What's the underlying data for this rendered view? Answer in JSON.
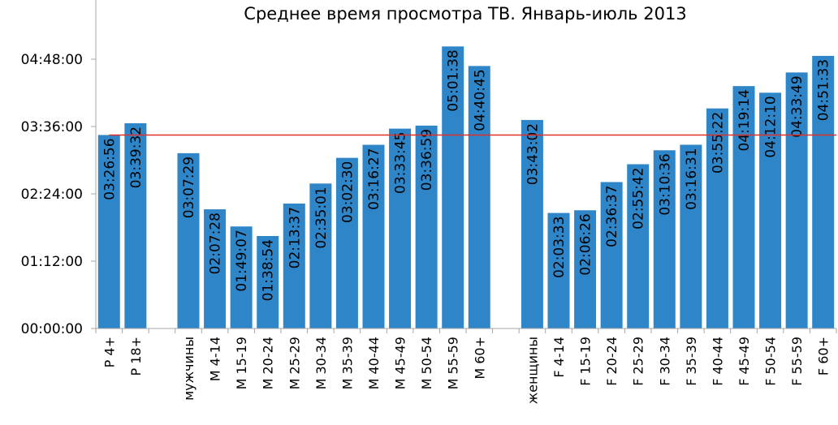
{
  "chart_data": {
    "type": "bar",
    "title": "Среднее время просмотра ТВ. Январь-июль 2013",
    "xlabel": "",
    "ylabel": "",
    "unit": "hh:mm:ss",
    "ylim_seconds": [
      0,
      20736
    ],
    "yticks": [
      {
        "label": "00:00:00",
        "seconds": 0
      },
      {
        "label": "01:12:00",
        "seconds": 4320
      },
      {
        "label": "02:24:00",
        "seconds": 8640
      },
      {
        "label": "03:36:00",
        "seconds": 12960
      },
      {
        "label": "04:48:00",
        "seconds": 17280
      }
    ],
    "reference_line": {
      "value_seconds": 12416,
      "value": "03:26:56",
      "color": "#E0302A"
    },
    "colors": {
      "bar": "#2E86C8",
      "axis": "#A6A6A6"
    },
    "grid": false,
    "legend": "none",
    "bars": [
      {
        "category": "P 4+",
        "value": "03:26:56",
        "seconds": 12416
      },
      {
        "category": "P 18+",
        "value": "03:39:32",
        "seconds": 13172
      },
      {
        "category": "",
        "value": "",
        "seconds": null
      },
      {
        "category": "мужчины",
        "value": "03:07:29",
        "seconds": 11249
      },
      {
        "category": "M 4-14",
        "value": "02:07:28",
        "seconds": 7648
      },
      {
        "category": "M 15-19",
        "value": "01:49:07",
        "seconds": 6547
      },
      {
        "category": "M 20-24",
        "value": "01:38:54",
        "seconds": 5934
      },
      {
        "category": "M 25-29",
        "value": "02:13:37",
        "seconds": 8017
      },
      {
        "category": "M 30-34",
        "value": "02:35:01",
        "seconds": 9301
      },
      {
        "category": "M 35-39",
        "value": "03:02:30",
        "seconds": 10950
      },
      {
        "category": "M 40-44",
        "value": "03:16:27",
        "seconds": 11787
      },
      {
        "category": "M 45-49",
        "value": "03:33:45",
        "seconds": 12825
      },
      {
        "category": "M 50-54",
        "value": "03:36:59",
        "seconds": 13019
      },
      {
        "category": "M 55-59",
        "value": "05:01:38",
        "seconds": 18098
      },
      {
        "category": "M 60+",
        "value": "04:40:45",
        "seconds": 16845
      },
      {
        "category": "",
        "value": "",
        "seconds": null
      },
      {
        "category": "женщины",
        "value": "03:43:02",
        "seconds": 13382
      },
      {
        "category": "F 4-14",
        "value": "02:03:33",
        "seconds": 7413
      },
      {
        "category": "F 15-19",
        "value": "02:06:26",
        "seconds": 7586
      },
      {
        "category": "F 20-24",
        "value": "02:36:37",
        "seconds": 9397
      },
      {
        "category": "F 25-29",
        "value": "02:55:42",
        "seconds": 10542
      },
      {
        "category": "F 30-34",
        "value": "03:10:36",
        "seconds": 11436
      },
      {
        "category": "F 35-39",
        "value": "03:16:31",
        "seconds": 11791
      },
      {
        "category": "F 40-44",
        "value": "03:55:22",
        "seconds": 14122
      },
      {
        "category": "F 45-49",
        "value": "04:19:14",
        "seconds": 15554
      },
      {
        "category": "F 50-54",
        "value": "04:12:10",
        "seconds": 15130
      },
      {
        "category": "F 55-59",
        "value": "04:33:49",
        "seconds": 16429
      },
      {
        "category": "F 60+",
        "value": "04:51:33",
        "seconds": 17493
      }
    ]
  }
}
